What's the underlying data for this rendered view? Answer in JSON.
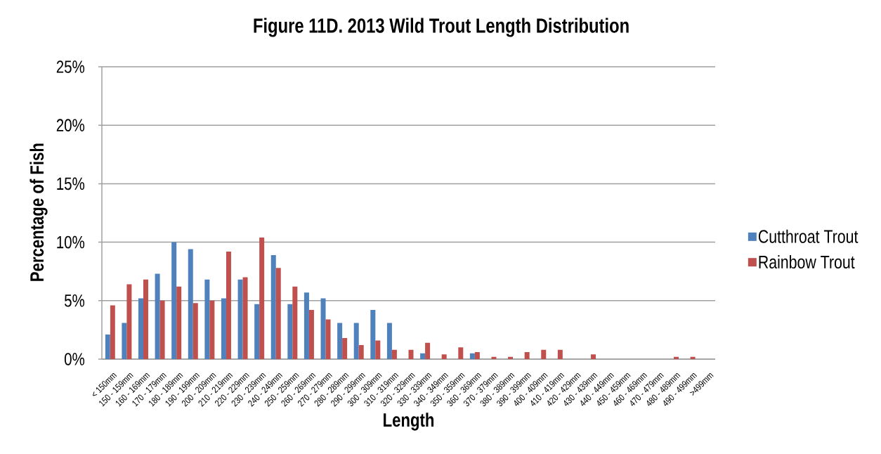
{
  "chart_data": {
    "type": "bar",
    "title": "Figure 11D. 2013 Wild Trout Length Distribution",
    "xlabel": "Length",
    "ylabel": "Percentage of Fish",
    "categories": [
      "< 150mm",
      "150 - 159mm",
      "160 - 169mm",
      "170 - 179mm",
      "180 - 189mm",
      "190 - 199mm",
      "200 - 209mm",
      "210 - 219mm",
      "220 - 229mm",
      "230 - 239mm",
      "240 - 249mm",
      "250 - 259mm",
      "260 - 269mm",
      "270 - 279mm",
      "280 - 289mm",
      "290 - 299mm",
      "300 - 309mm",
      "310 - 319mm",
      "320 - 329mm",
      "330 - 339mm",
      "340 - 349mm",
      "350 - 359mm",
      "360 - 369mm",
      "370 - 379mm",
      "380 - 389mm",
      "390 - 399mm",
      "400 - 409mm",
      "410 - 419mm",
      "420 - 429mm",
      "430 - 439mm",
      "440 - 449mm",
      "450 - 459mm",
      "460 - 469mm",
      "470 - 479mm",
      "480 - 489mm",
      "490 - 499mm",
      ">499mm"
    ],
    "series": [
      {
        "name": "Cutthroat Trout",
        "color": "#4f81bd",
        "values": [
          2.1,
          3.1,
          5.2,
          7.3,
          10.0,
          9.4,
          6.8,
          5.2,
          6.8,
          4.7,
          8.9,
          4.7,
          5.7,
          5.2,
          3.1,
          3.1,
          4.2,
          3.1,
          0,
          0.5,
          0,
          0,
          0.5,
          0,
          0,
          0,
          0,
          0,
          0,
          0,
          0,
          0,
          0,
          0,
          0,
          0,
          0
        ]
      },
      {
        "name": "Rainbow Trout",
        "color": "#c0504d",
        "values": [
          4.6,
          6.4,
          6.8,
          5.0,
          6.2,
          4.8,
          5.0,
          9.2,
          7.0,
          10.4,
          7.8,
          6.2,
          4.2,
          3.4,
          1.8,
          1.2,
          1.6,
          0.8,
          0.8,
          1.4,
          0.4,
          1.0,
          0.6,
          0.2,
          0.2,
          0.6,
          0.8,
          0.8,
          0,
          0.4,
          0,
          0,
          0,
          0,
          0.2,
          0.2,
          0
        ]
      }
    ],
    "ylim": [
      0,
      25
    ],
    "yticks": [
      {
        "value": 0,
        "label": "0%"
      },
      {
        "value": 5,
        "label": "5%"
      },
      {
        "value": 10,
        "label": "10%"
      },
      {
        "value": 15,
        "label": "15%"
      },
      {
        "value": 20,
        "label": "20%"
      },
      {
        "value": 25,
        "label": "25%"
      }
    ],
    "grid": "y",
    "legend": "right"
  }
}
